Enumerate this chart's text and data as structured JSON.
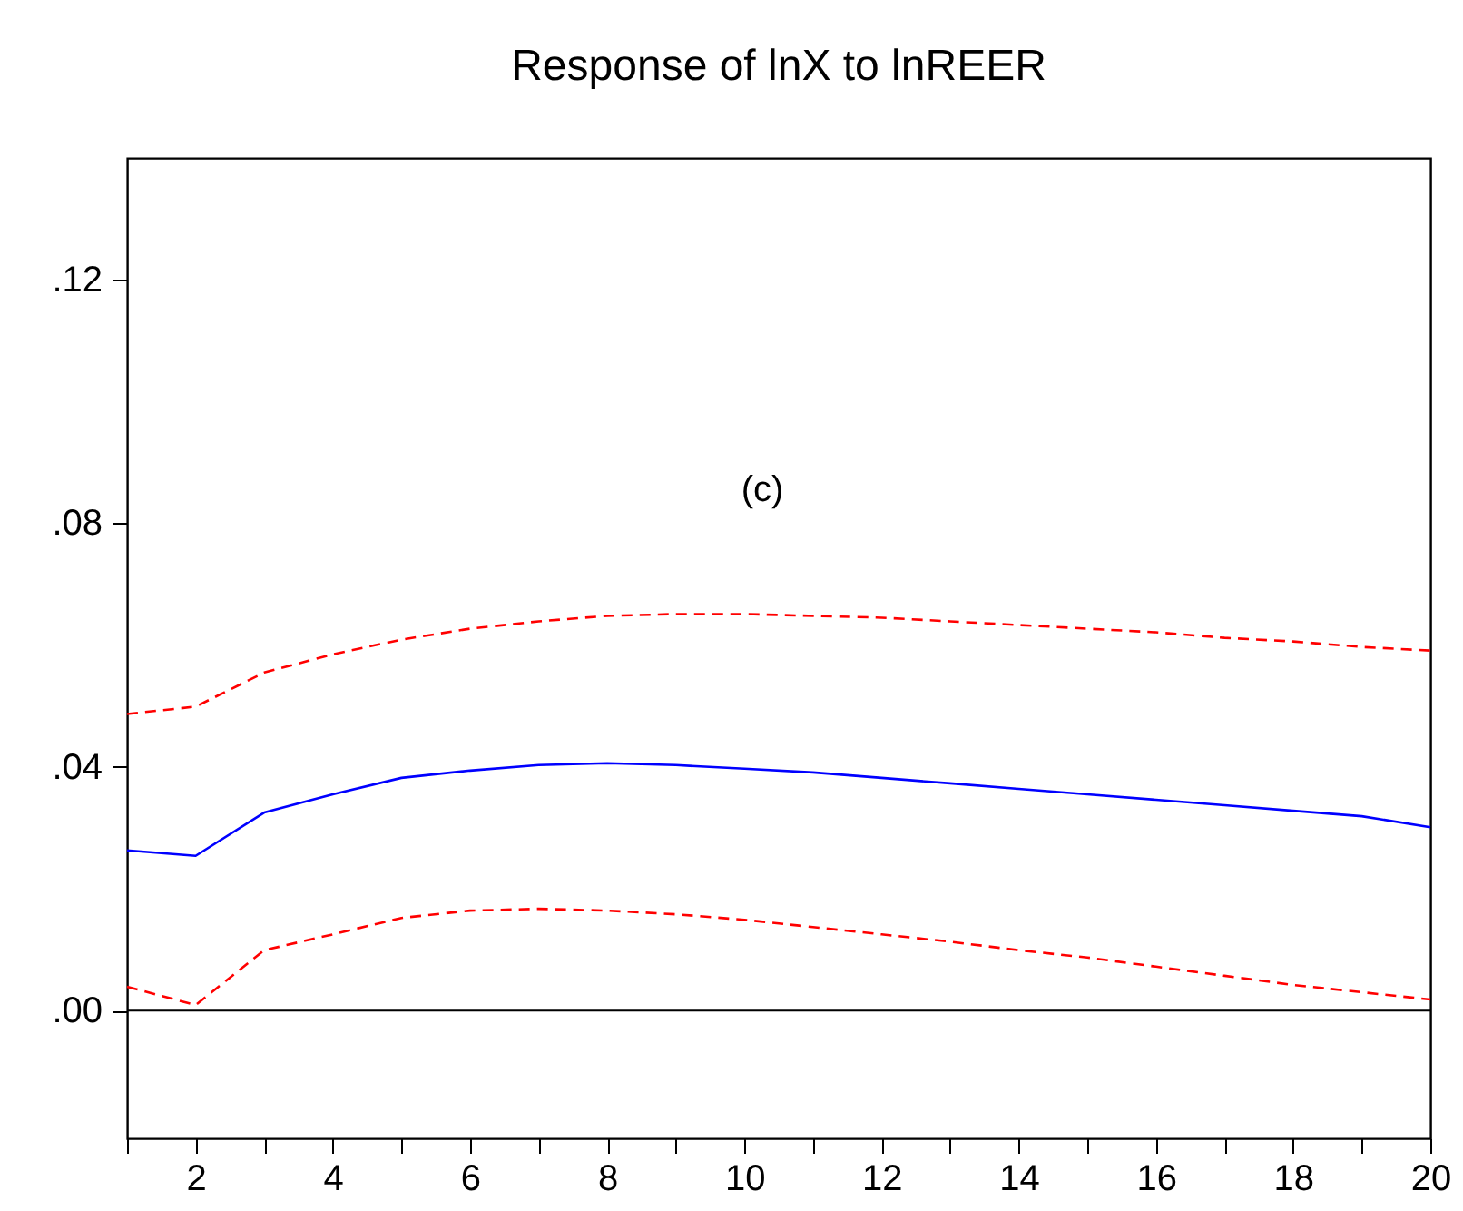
{
  "chart_data": {
    "type": "line",
    "title": "Response of lnX to lnREER",
    "annotations": [
      "(c)"
    ],
    "x": [
      1,
      2,
      3,
      4,
      5,
      6,
      7,
      8,
      9,
      10,
      11,
      12,
      13,
      14,
      15,
      16,
      17,
      18,
      19,
      20
    ],
    "series": [
      {
        "color": "#0000ff",
        "line_style": "solid",
        "values": [
          0.0263,
          0.0254,
          0.0325,
          0.0355,
          0.0382,
          0.0394,
          0.0403,
          0.0406,
          0.0403,
          0.0397,
          0.0391,
          0.0382,
          0.0373,
          0.0364,
          0.0355,
          0.0346,
          0.0337,
          0.0328,
          0.0319,
          0.0301
        ]
      },
      {
        "color": "#ff0000",
        "line_style": "dashed",
        "values": [
          0.0487,
          0.0499,
          0.0555,
          0.0585,
          0.0609,
          0.0627,
          0.0639,
          0.0648,
          0.0651,
          0.0651,
          0.0648,
          0.0645,
          0.0639,
          0.0633,
          0.0627,
          0.0621,
          0.0612,
          0.0606,
          0.0597,
          0.0591
        ]
      },
      {
        "color": "#ff0000",
        "line_style": "dashed",
        "values": [
          0.0039,
          0.0009,
          0.0099,
          0.0125,
          0.0152,
          0.0164,
          0.0167,
          0.0164,
          0.0158,
          0.0149,
          0.0137,
          0.0125,
          0.0113,
          0.0099,
          0.0087,
          0.0072,
          0.0057,
          0.0042,
          0.003,
          0.0018
        ]
      }
    ],
    "xlim": [
      1,
      20
    ],
    "xticks": [
      {
        "value": 1,
        "label": null
      },
      2,
      {
        "value": 3,
        "label": null
      },
      4,
      {
        "value": 5,
        "label": null
      },
      6,
      {
        "value": 7,
        "label": null
      },
      8,
      {
        "value": 9,
        "label": null
      },
      10,
      {
        "value": 11,
        "label": null
      },
      12,
      {
        "value": 13,
        "label": null
      },
      14,
      {
        "value": 15,
        "label": null
      },
      16,
      {
        "value": 17,
        "label": null
      },
      18,
      {
        "value": 19,
        "label": null
      },
      20
    ],
    "ylim": [
      -0.021,
      0.14
    ],
    "yticks": [
      {
        "value": 0,
        "label": ".00"
      },
      {
        "value": 0.04,
        "label": ".04"
      },
      {
        "value": 0.08,
        "label": ".08"
      },
      {
        "value": 0.12,
        "label": ".12"
      }
    ],
    "ref_lines": [
      {
        "axis": "y",
        "value": 0,
        "color": "#000000",
        "line_style": "solid"
      }
    ],
    "grid": false
  }
}
